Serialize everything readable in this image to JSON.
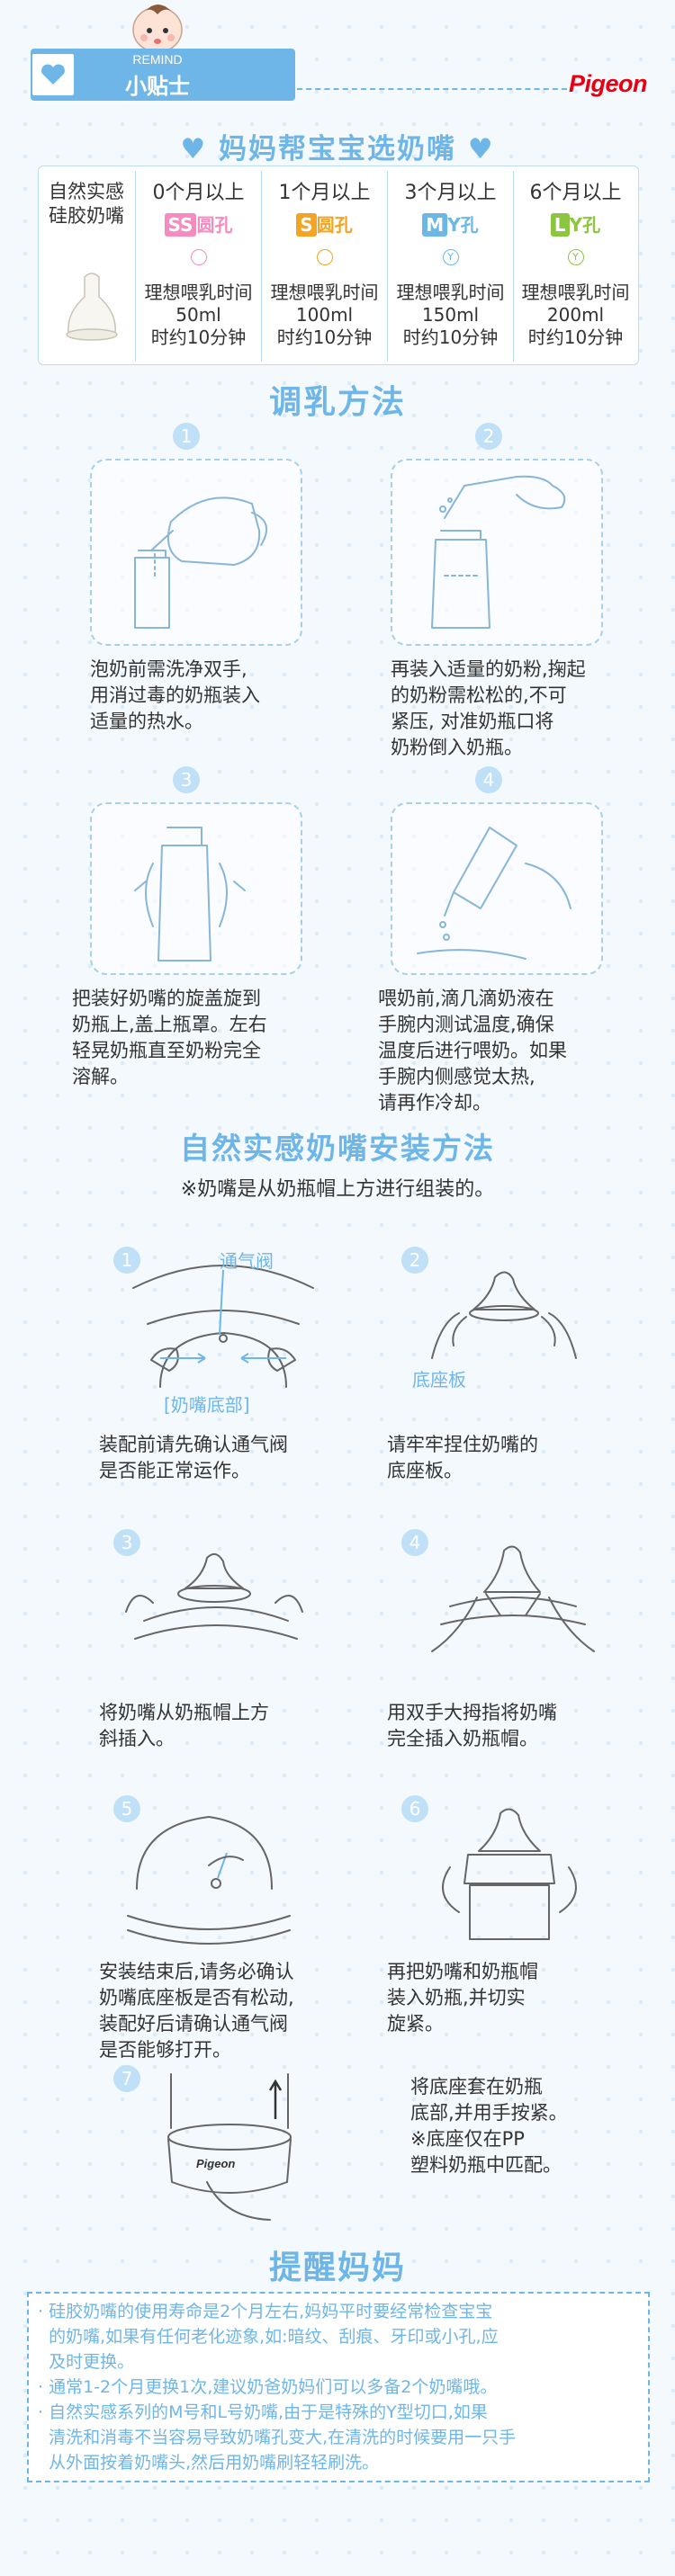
{
  "header": {
    "remind": "REMIND",
    "tips": "小贴士",
    "brand": "Pigeon"
  },
  "selection": {
    "title": "妈妈帮宝宝选奶嘴",
    "product": "自然实感硅胶奶嘴",
    "columns": [
      {
        "age": "0个月以上",
        "size": "SS",
        "hole": "圆孔",
        "time": "理想喂乳时间",
        "volume": "50ml",
        "duration": "时约10分钟",
        "color": "#f58bc0"
      },
      {
        "age": "1个月以上",
        "size": "S",
        "hole": "圆孔",
        "time": "理想喂乳时间",
        "volume": "100ml",
        "duration": "时约10分钟",
        "color": "#f4a423"
      },
      {
        "age": "3个月以上",
        "size": "M",
        "hole": "Y孔",
        "time": "理想喂乳时间",
        "volume": "150ml",
        "duration": "时约10分钟",
        "color": "#6bb8e6"
      },
      {
        "age": "6个月以上",
        "size": "L",
        "hole": "Y孔",
        "time": "理想喂乳时间",
        "volume": "200ml",
        "duration": "时约10分钟",
        "color": "#8cc63f"
      }
    ]
  },
  "mixing": {
    "title": "调乳方法",
    "steps": [
      {
        "n": "1",
        "l1": "泡奶前需洗净双手,",
        "l2": "用消过毒的奶瓶装入",
        "l3": "适量的热水。",
        "l4": "",
        "l5": ""
      },
      {
        "n": "2",
        "l1": "再装入适量的奶粉,掬起",
        "l2": "的奶粉需松松的,不可",
        "l3": "紧压, 对准奶瓶口将",
        "l4": "奶粉倒入奶瓶。",
        "l5": ""
      },
      {
        "n": "3",
        "l1": "把装好奶嘴的旋盖旋到",
        "l2": "奶瓶上,盖上瓶罩。左右",
        "l3": "轻晃奶瓶直至奶粉完全",
        "l4": "溶解。",
        "l5": ""
      },
      {
        "n": "4",
        "l1": "喂奶前,滴几滴奶液在",
        "l2": "手腕内测试温度,确保",
        "l3": "温度后进行喂奶。如果",
        "l4": "手腕内侧感觉太热,",
        "l5": "请再作冷却。"
      }
    ]
  },
  "install": {
    "title": "自然实感奶嘴安装方法",
    "note": "※奶嘴是从奶瓶帽上方进行组装的。",
    "labels": {
      "vent": "通气阀",
      "base": "[奶嘴底部]",
      "plate": "底座板"
    },
    "steps": [
      {
        "n": "1",
        "l1": "装配前请先确认通气阀",
        "l2": "是否能正常运作。",
        "l3": "",
        "l4": ""
      },
      {
        "n": "2",
        "l1": "请牢牢捏住奶嘴的",
        "l2": "底座板。",
        "l3": "",
        "l4": ""
      },
      {
        "n": "3",
        "l1": "将奶嘴从奶瓶帽上方",
        "l2": "斜插入。",
        "l3": "",
        "l4": ""
      },
      {
        "n": "4",
        "l1": "用双手大拇指将奶嘴",
        "l2": "完全插入奶瓶帽。",
        "l3": "",
        "l4": ""
      },
      {
        "n": "5",
        "l1": "安装结束后,请务必确认",
        "l2": "奶嘴底座板是否有松动,",
        "l3": "装配好后请确认通气阀",
        "l4": "是否能够打开。"
      },
      {
        "n": "6",
        "l1": "再把奶嘴和奶瓶帽",
        "l2": "装入奶瓶,并切实",
        "l3": "旋紧。",
        "l4": ""
      },
      {
        "n": "7",
        "l1": "将底座套在奶瓶",
        "l2": "底部,并用手按紧。",
        "l3": "※底座仅在PP",
        "l4": "塑料奶瓶中匹配。"
      }
    ],
    "base_brand": "Pigeon"
  },
  "reminder": {
    "title": "提醒妈妈",
    "lines": [
      "· 硅胶奶嘴的使用寿命是2个月左右,妈妈平时要经常检查宝宝",
      "  的奶嘴,如果有任何老化迹象,如:暗纹、刮痕、牙印或小孔,应",
      "  及时更换。",
      "· 通常1-2个月更换1次,建议奶爸奶妈们可以多备2个奶嘴哦。",
      "· 自然实感系列的M号和L号奶嘴,由于是特殊的Y型切口,如果",
      "  清洗和消毒不当容易导致奶嘴孔变大,在清洗的时候要用一只手",
      "  从外面按着奶嘴头,然后用奶嘴刷轻轻刷洗。"
    ]
  }
}
